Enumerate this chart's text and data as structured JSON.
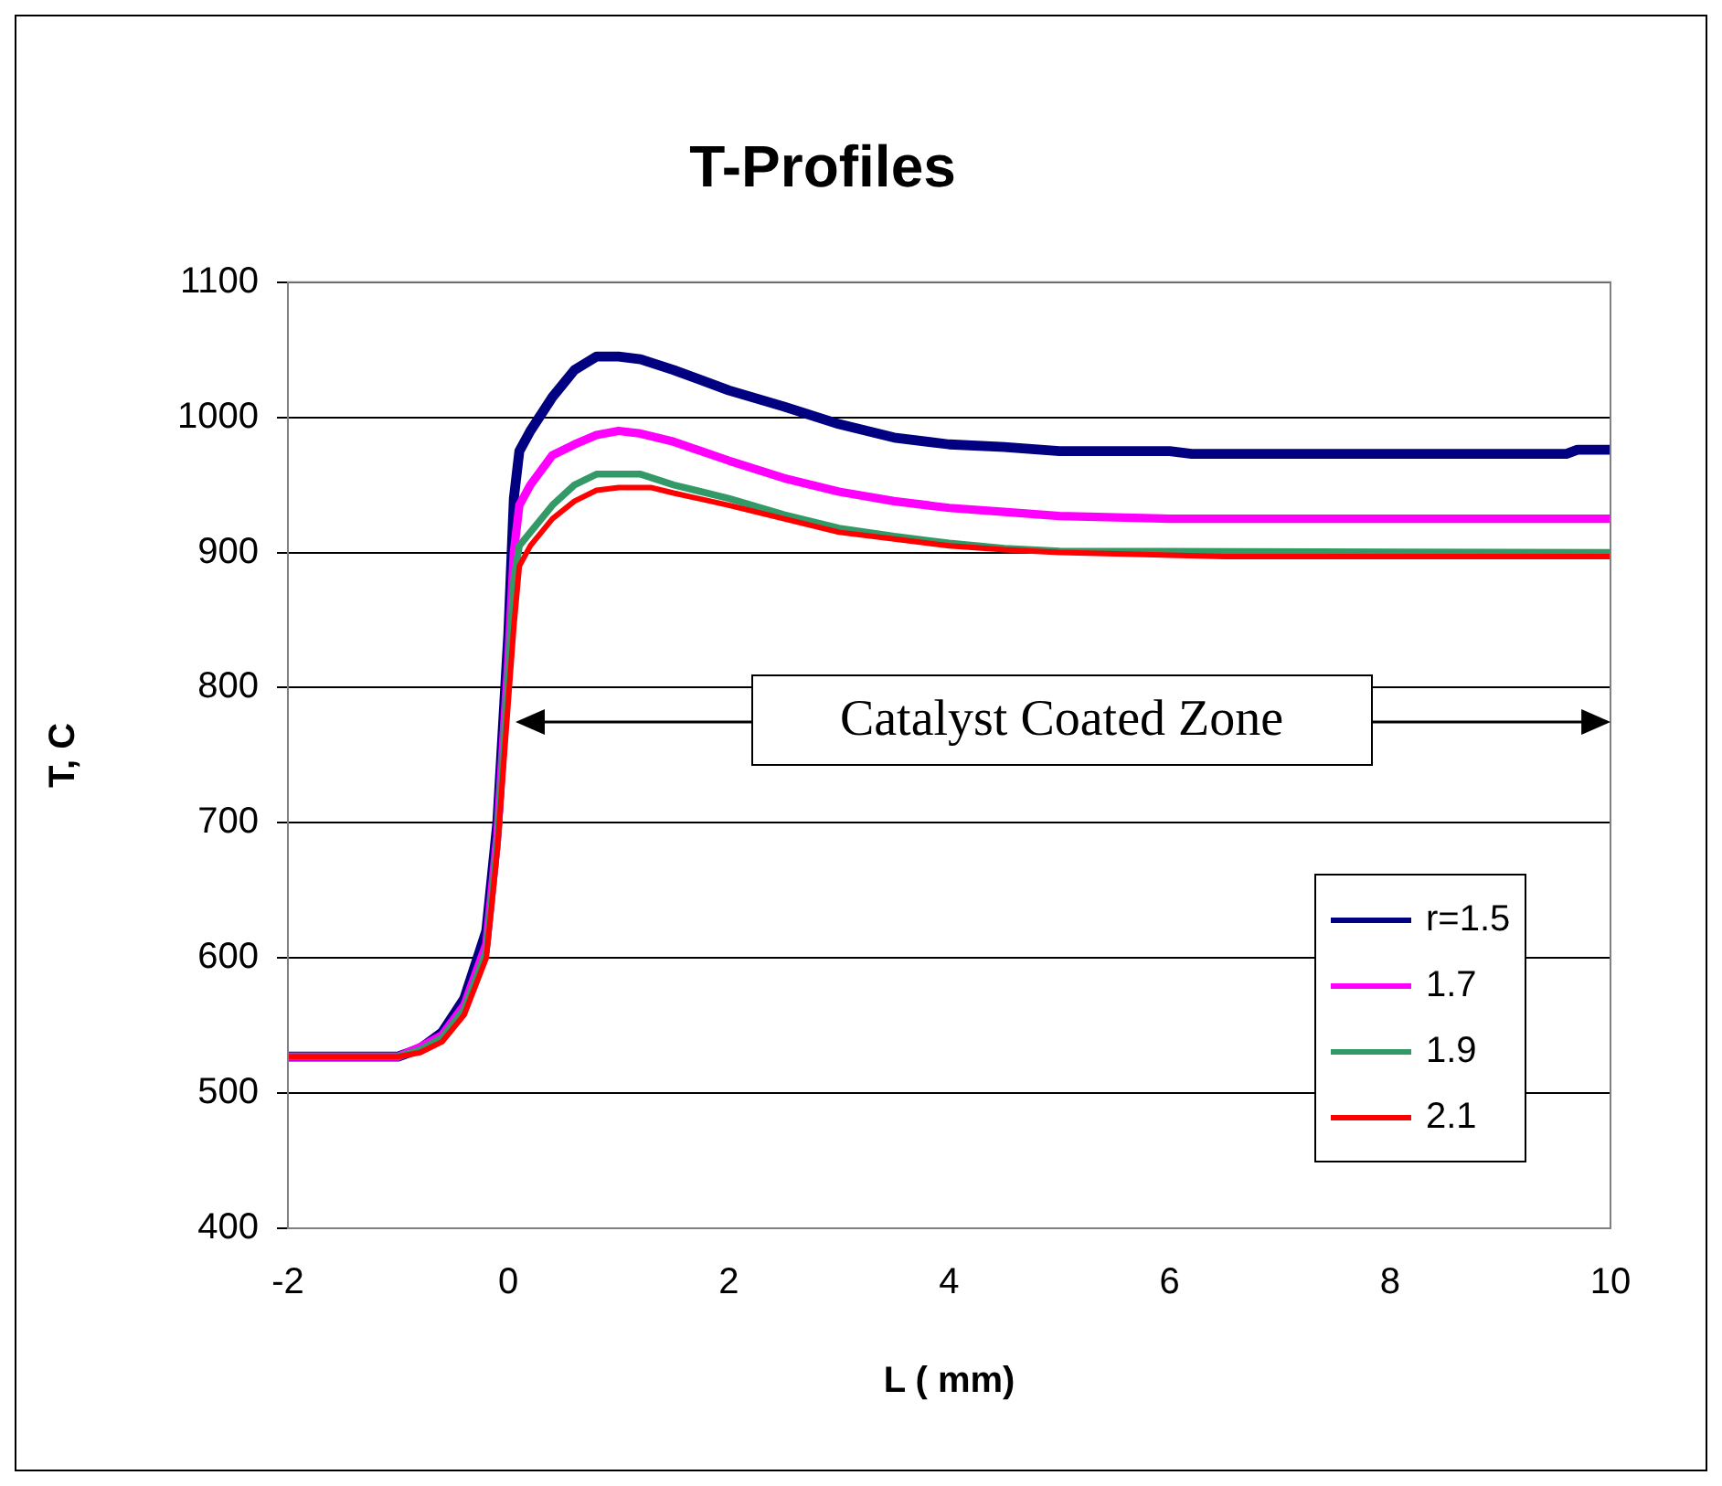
{
  "chart_data": {
    "type": "line",
    "title": "T-Profiles",
    "xlabel": "L ( mm)",
    "ylabel": "T, C",
    "xlim": [
      -2,
      10
    ],
    "xticks": [
      -2,
      0,
      2,
      4,
      6,
      8,
      10
    ],
    "ylim": [
      400,
      1100
    ],
    "yticks": [
      400,
      500,
      600,
      700,
      800,
      900,
      1000,
      1100
    ],
    "grid": "y",
    "legend": "bottom right",
    "marker": "none",
    "line_style": "solid",
    "annotations": [
      "Catalyst Coated Zone"
    ],
    "series": [
      {
        "name": "r=1.5",
        "color": "#000080",
        "x": [
          -2,
          -1,
          -0.8,
          -0.6,
          -0.4,
          -0.2,
          -0.1,
          0,
          0.05,
          0.1,
          0.2,
          0.4,
          0.6,
          0.8,
          1,
          1.2,
          1.5,
          2,
          2.5,
          3,
          3.5,
          4,
          4.5,
          5,
          6,
          6.2,
          9.6,
          9.7,
          10
        ],
        "values": [
          527,
          527,
          533,
          545,
          570,
          620,
          700,
          840,
          940,
          975,
          990,
          1015,
          1035,
          1045,
          1045,
          1043,
          1035,
          1020,
          1008,
          995,
          985,
          980,
          978,
          975,
          975,
          973,
          973,
          976,
          976
        ]
      },
      {
        "name": "1.7",
        "color": "#ff00ff",
        "x": [
          -2,
          -1,
          -0.8,
          -0.6,
          -0.4,
          -0.2,
          -0.1,
          0,
          0.05,
          0.1,
          0.2,
          0.4,
          0.6,
          0.8,
          1,
          1.2,
          1.5,
          2,
          2.5,
          3,
          3.5,
          4,
          4.5,
          5,
          6,
          10
        ],
        "values": [
          527,
          527,
          534,
          543,
          565,
          610,
          690,
          820,
          900,
          935,
          950,
          972,
          980,
          987,
          990,
          988,
          982,
          968,
          955,
          945,
          938,
          933,
          930,
          927,
          925,
          925
        ]
      },
      {
        "name": "1.9",
        "color": "#339966",
        "x": [
          -2,
          -1,
          -0.8,
          -0.6,
          -0.4,
          -0.2,
          -0.1,
          0,
          0.05,
          0.1,
          0.2,
          0.4,
          0.6,
          0.8,
          1.2,
          1.5,
          2,
          2.5,
          3,
          3.5,
          4,
          4.5,
          5,
          10
        ],
        "values": [
          527,
          527,
          532,
          541,
          562,
          605,
          685,
          810,
          880,
          905,
          915,
          935,
          950,
          958,
          958,
          950,
          940,
          928,
          918,
          912,
          907,
          903,
          901,
          900
        ]
      },
      {
        "name": "2.1",
        "color": "#ff0000",
        "x": [
          -2,
          -1,
          -0.8,
          -0.6,
          -0.4,
          -0.2,
          -0.1,
          0,
          0.05,
          0.1,
          0.2,
          0.4,
          0.6,
          0.8,
          1,
          1.3,
          1.5,
          2,
          2.5,
          3,
          3.5,
          4,
          4.5,
          5,
          6.5,
          10
        ],
        "values": [
          527,
          527,
          530,
          538,
          558,
          600,
          680,
          790,
          845,
          890,
          905,
          925,
          938,
          946,
          948,
          948,
          944,
          935,
          925,
          915,
          910,
          905,
          902,
          900,
          897,
          897
        ]
      }
    ]
  }
}
